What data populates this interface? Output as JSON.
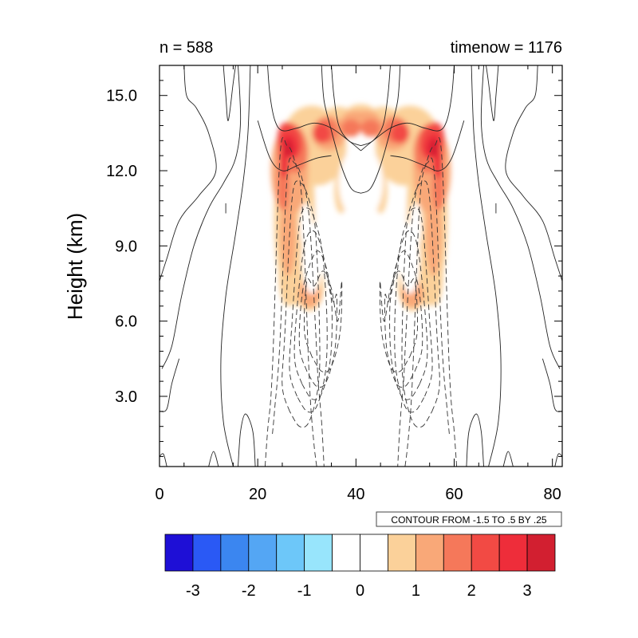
{
  "chart_data": {
    "type": "contour",
    "title_left": "n = 588",
    "title_right": "timenow = 1176",
    "xlabel": "",
    "ylabel": "Height (km)",
    "xlim": [
      0,
      82
    ],
    "ylim": [
      0.2,
      16.2
    ],
    "x_ticks": [
      0,
      20,
      40,
      60,
      80
    ],
    "x_tick_labels": [
      "0",
      "20",
      "40",
      "60",
      "80"
    ],
    "y_ticks": [
      3.0,
      6.0,
      9.0,
      12.0,
      15.0
    ],
    "y_tick_labels": [
      "3.0",
      "6.0",
      "9.0",
      "12.0",
      "15.0"
    ],
    "contour_info": "CONTOUR FROM -1.5 TO .5 BY .25",
    "colorbar": {
      "colors": [
        "#1e0fd6",
        "#2a59f5",
        "#3b86f0",
        "#54a6f4",
        "#6dc7f9",
        "#98e5fc",
        "#ffffff",
        "#ffffff",
        "#fbd19a",
        "#f9a878",
        "#f5785a",
        "#f24a44",
        "#ee2d3a",
        "#d21f30"
      ],
      "labels": [
        "-3",
        "-2",
        "-1",
        "0",
        "1",
        "2",
        "3"
      ],
      "label_values": [
        -3,
        -2,
        -1,
        0,
        1,
        2,
        3
      ]
    },
    "shaded_regions": [
      {
        "name": "left-plume",
        "center_x": 27,
        "center_y": 12.8,
        "max_level": 3.5
      },
      {
        "name": "right-plume",
        "center_x": 55,
        "center_y": 12.8,
        "max_level": 3.5
      },
      {
        "name": "left-lower-lobe",
        "center_x": 30,
        "center_y": 7.5,
        "max_level": 1.5
      },
      {
        "name": "right-lower-lobe",
        "center_x": 52,
        "center_y": 7.5,
        "max_level": 1.5
      }
    ]
  }
}
